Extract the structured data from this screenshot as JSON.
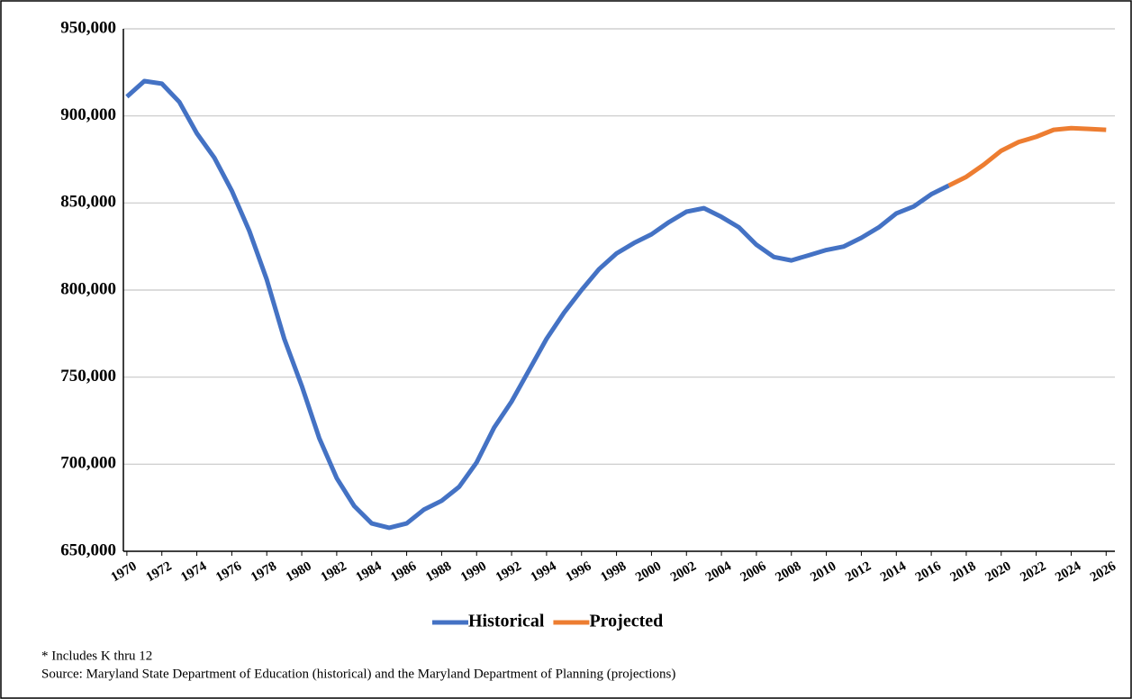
{
  "chart_data": {
    "type": "line",
    "x": [
      1970,
      1971,
      1972,
      1973,
      1974,
      1975,
      1976,
      1977,
      1978,
      1979,
      1980,
      1981,
      1982,
      1983,
      1984,
      1985,
      1986,
      1987,
      1988,
      1989,
      1990,
      1991,
      1992,
      1993,
      1994,
      1995,
      1996,
      1997,
      1998,
      1999,
      2000,
      2001,
      2002,
      2003,
      2004,
      2005,
      2006,
      2007,
      2008,
      2009,
      2010,
      2011,
      2012,
      2013,
      2014,
      2015,
      2016,
      2017,
      2018,
      2019,
      2020,
      2021,
      2022,
      2023,
      2024,
      2025,
      2026
    ],
    "series": [
      {
        "name": "Historical",
        "color": "#4472c4",
        "values": [
          911000,
          920000,
          918500,
          908000,
          890000,
          876000,
          857000,
          834000,
          806000,
          772000,
          745000,
          715000,
          692000,
          676000,
          666000,
          663500,
          666000,
          674000,
          679000,
          687000,
          701000,
          721000,
          736000,
          754000,
          772000,
          787000,
          800000,
          812000,
          821000,
          827000,
          832000,
          839000,
          845000,
          847000,
          842000,
          836000,
          826000,
          819000,
          817000,
          820000,
          823000,
          825000,
          830000,
          836000,
          844000,
          848000,
          855000,
          860000,
          null,
          null,
          null,
          null,
          null,
          null,
          null,
          null,
          null
        ]
      },
      {
        "name": "Projected",
        "color": "#ed7d31",
        "values": [
          null,
          null,
          null,
          null,
          null,
          null,
          null,
          null,
          null,
          null,
          null,
          null,
          null,
          null,
          null,
          null,
          null,
          null,
          null,
          null,
          null,
          null,
          null,
          null,
          null,
          null,
          null,
          null,
          null,
          null,
          null,
          null,
          null,
          null,
          null,
          null,
          null,
          null,
          null,
          null,
          null,
          null,
          null,
          null,
          null,
          null,
          null,
          860000,
          865000,
          872000,
          880000,
          885000,
          888000,
          892000,
          893000,
          892500,
          892000
        ]
      }
    ],
    "xlim": [
      1969.8,
      2026.5
    ],
    "xticks": [
      1970,
      1972,
      1974,
      1976,
      1978,
      1980,
      1982,
      1984,
      1986,
      1988,
      1990,
      1992,
      1994,
      1996,
      1998,
      2000,
      2002,
      2004,
      2006,
      2008,
      2010,
      2012,
      2014,
      2016,
      2018,
      2020,
      2022,
      2024,
      2026
    ],
    "ylim": [
      650000,
      950000
    ],
    "yticks": [
      {
        "value": 650000,
        "label": "650,000"
      },
      {
        "value": 700000,
        "label": "700,000"
      },
      {
        "value": 750000,
        "label": "750,000"
      },
      {
        "value": 800000,
        "label": "800,000"
      },
      {
        "value": 850000,
        "label": "850,000"
      },
      {
        "value": 900000,
        "label": "900,000"
      },
      {
        "value": 950000,
        "label": "950,000"
      }
    ],
    "grid": true,
    "legend": "bottom",
    "annotations": [
      "* Includes K thru 12",
      "Source: Maryland State Department of Education (historical) and the Maryland Department of Planning (projections)"
    ]
  }
}
